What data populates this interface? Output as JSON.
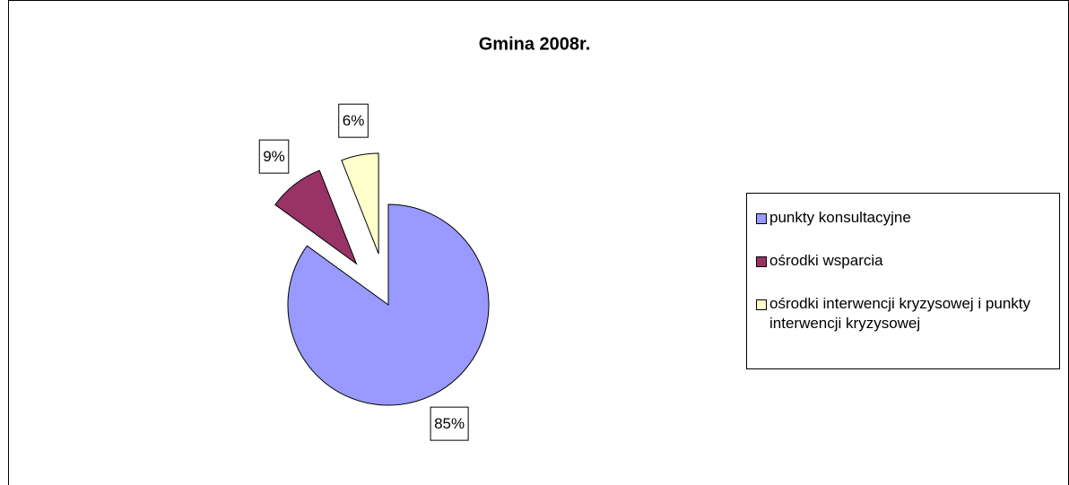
{
  "chart_data": {
    "type": "pie",
    "title": "Gmina 2008r.",
    "categories": [
      "punkty konsultacyjne",
      "ośrodki wsparcia",
      "ośrodki interwencji kryzysowej i punkty interwencji kryzysowej"
    ],
    "values": [
      85,
      9,
      6
    ],
    "value_labels": [
      "85%",
      "9%",
      "6%"
    ],
    "colors": [
      "#9999ff",
      "#993366",
      "#ffffcc"
    ],
    "legend": "right"
  }
}
